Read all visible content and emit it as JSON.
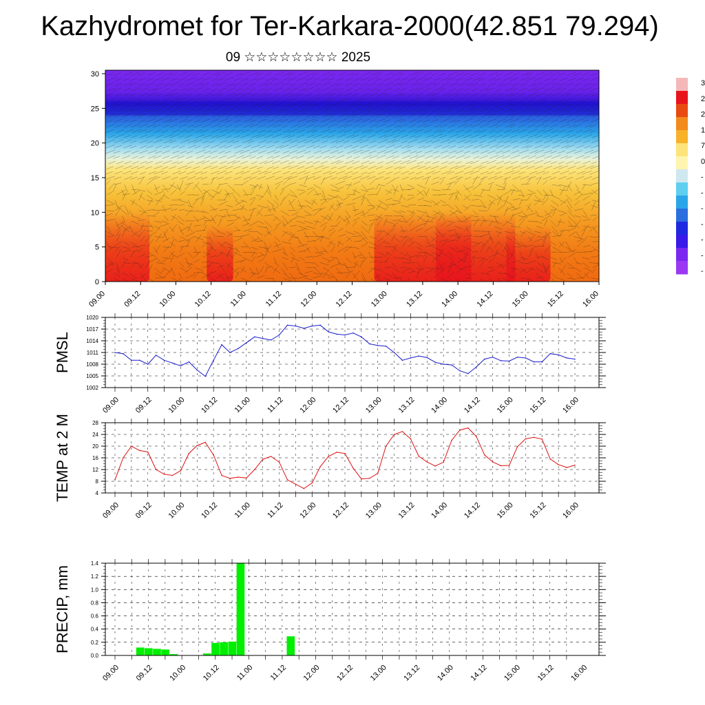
{
  "title": "Kazhydromet for Ter-Karkara-2000(42.851 79.294)",
  "subtitle": "09 ☆☆☆☆☆☆☆☆ 2025",
  "time_labels": [
    "09.00",
    "09.12",
    "10.00",
    "10.12",
    "11.00",
    "11.12",
    "12.00",
    "12.12",
    "13.00",
    "13.12",
    "14.00",
    "14.12",
    "15.00",
    "15.12",
    "16.00"
  ],
  "colorbar": {
    "colors": [
      "#f4b8b8",
      "#e8141c",
      "#e84a10",
      "#f28a1c",
      "#f7b22a",
      "#fde47a",
      "#fff4b0",
      "#cfe8f0",
      "#5fcff0",
      "#2aa6e8",
      "#2a6ee0",
      "#1f2ae0",
      "#3a1ae8",
      "#7a28f0",
      "#9a38f4"
    ],
    "labels": [
      "3",
      "2",
      "2",
      "1",
      "7",
      "0",
      "-",
      "-",
      "-",
      "-",
      "-",
      "-",
      "-"
    ]
  },
  "chart_data": [
    {
      "type": "heatmap",
      "name": "vertical-profile",
      "yticks": [
        0,
        5,
        10,
        15,
        20,
        25,
        30
      ],
      "ylim": [
        0,
        30.5
      ],
      "xlim": [
        0,
        56
      ],
      "xlabels": [
        "09.00",
        "09.12",
        "10.00",
        "10.12",
        "11.00",
        "11.12",
        "12.00",
        "12.12",
        "13.00",
        "13.12",
        "14.00",
        "14.12",
        "15.00",
        "15.12",
        "16.00"
      ],
      "grid": false,
      "legend": "colorbar-right"
    },
    {
      "type": "line",
      "ylabel": "PMSL",
      "color": "#1a1acc",
      "ylim": [
        1002,
        1020
      ],
      "yticks": [
        1002,
        1005,
        1008,
        1011,
        1014,
        1017,
        1020
      ],
      "xlabels": [
        "09.00",
        "09.12",
        "10.00",
        "10.12",
        "11.00",
        "11.12",
        "12.00",
        "12.12",
        "13.00",
        "13.12",
        "14.00",
        "14.12",
        "15.00",
        "15.12",
        "16.00"
      ],
      "values": [
        1011,
        1010.7,
        1009,
        1009,
        1008,
        1010.3,
        1009,
        1008.3,
        1007.6,
        1008.6,
        1006.5,
        1004.9,
        1009,
        1013,
        1011,
        1012,
        1013.5,
        1015,
        1014.6,
        1014.2,
        1015.5,
        1018,
        1017.8,
        1017.2,
        1017.8,
        1018,
        1016.3,
        1015.7,
        1015.5,
        1016,
        1015,
        1013.2,
        1012.8,
        1012.6,
        1011,
        1009,
        1009.6,
        1010.1,
        1009.7,
        1008.5,
        1008,
        1007.8,
        1006.3,
        1005.6,
        1007.3,
        1009.3,
        1009.8,
        1008.9,
        1008.8,
        1009.8,
        1009.6,
        1008.6,
        1008.6,
        1010.7,
        1010.4,
        1009.6,
        1009.3
      ],
      "grid": true
    },
    {
      "type": "line",
      "ylabel": "TEMP at 2 M",
      "color": "#dd1111",
      "ylim": [
        4,
        28
      ],
      "yticks": [
        4,
        8,
        12,
        16,
        20,
        24,
        28
      ],
      "xlabels": [
        "09.00",
        "09.12",
        "10.00",
        "10.12",
        "11.00",
        "11.12",
        "12.00",
        "12.12",
        "13.00",
        "13.12",
        "14.00",
        "14.12",
        "15.00",
        "15.12",
        "16.00"
      ],
      "values": [
        8.5,
        16,
        20,
        18.5,
        18,
        12,
        10.4,
        10,
        11.6,
        17.5,
        20.2,
        21.3,
        17,
        10,
        9,
        9.4,
        9.1,
        12,
        15.5,
        16.5,
        14.5,
        8.5,
        7,
        5.5,
        7.4,
        13,
        16.5,
        17.9,
        17.5,
        12.5,
        8.8,
        9,
        10.7,
        20,
        24,
        25,
        22.5,
        16.5,
        14.6,
        13.2,
        14.5,
        22,
        25.5,
        26.2,
        23.3,
        17,
        14.6,
        13.3,
        13.4,
        19.8,
        22.5,
        23,
        22.4,
        15.6,
        13.7,
        12.7,
        13.5
      ],
      "grid": true
    },
    {
      "type": "bar",
      "ylabel": "PRECIP, mm",
      "color": "#00ee00",
      "ylim": [
        0,
        1.4
      ],
      "yticks": [
        0.0,
        0.2,
        0.4,
        0.6,
        0.8,
        1.0,
        1.2,
        1.4
      ],
      "xlabels": [
        "09.00",
        "09.12",
        "10.00",
        "10.12",
        "11.00",
        "11.12",
        "12.00",
        "12.12",
        "13.00",
        "13.12",
        "14.00",
        "14.12",
        "15.00",
        "15.12",
        "16.00"
      ],
      "values": [
        0,
        0,
        0,
        0.12,
        0.11,
        0.1,
        0.09,
        0.02,
        0,
        0,
        0,
        0.03,
        0.19,
        0.2,
        0.21,
        1.4,
        0,
        0,
        0,
        0,
        0,
        0.29,
        0,
        0,
        0,
        0,
        0,
        0,
        0,
        0,
        0,
        0,
        0,
        0,
        0,
        0,
        0,
        0,
        0,
        0,
        0,
        0,
        0,
        0,
        0,
        0,
        0,
        0,
        0,
        0,
        0,
        0,
        0,
        0,
        0,
        0
      ],
      "grid": true
    }
  ]
}
